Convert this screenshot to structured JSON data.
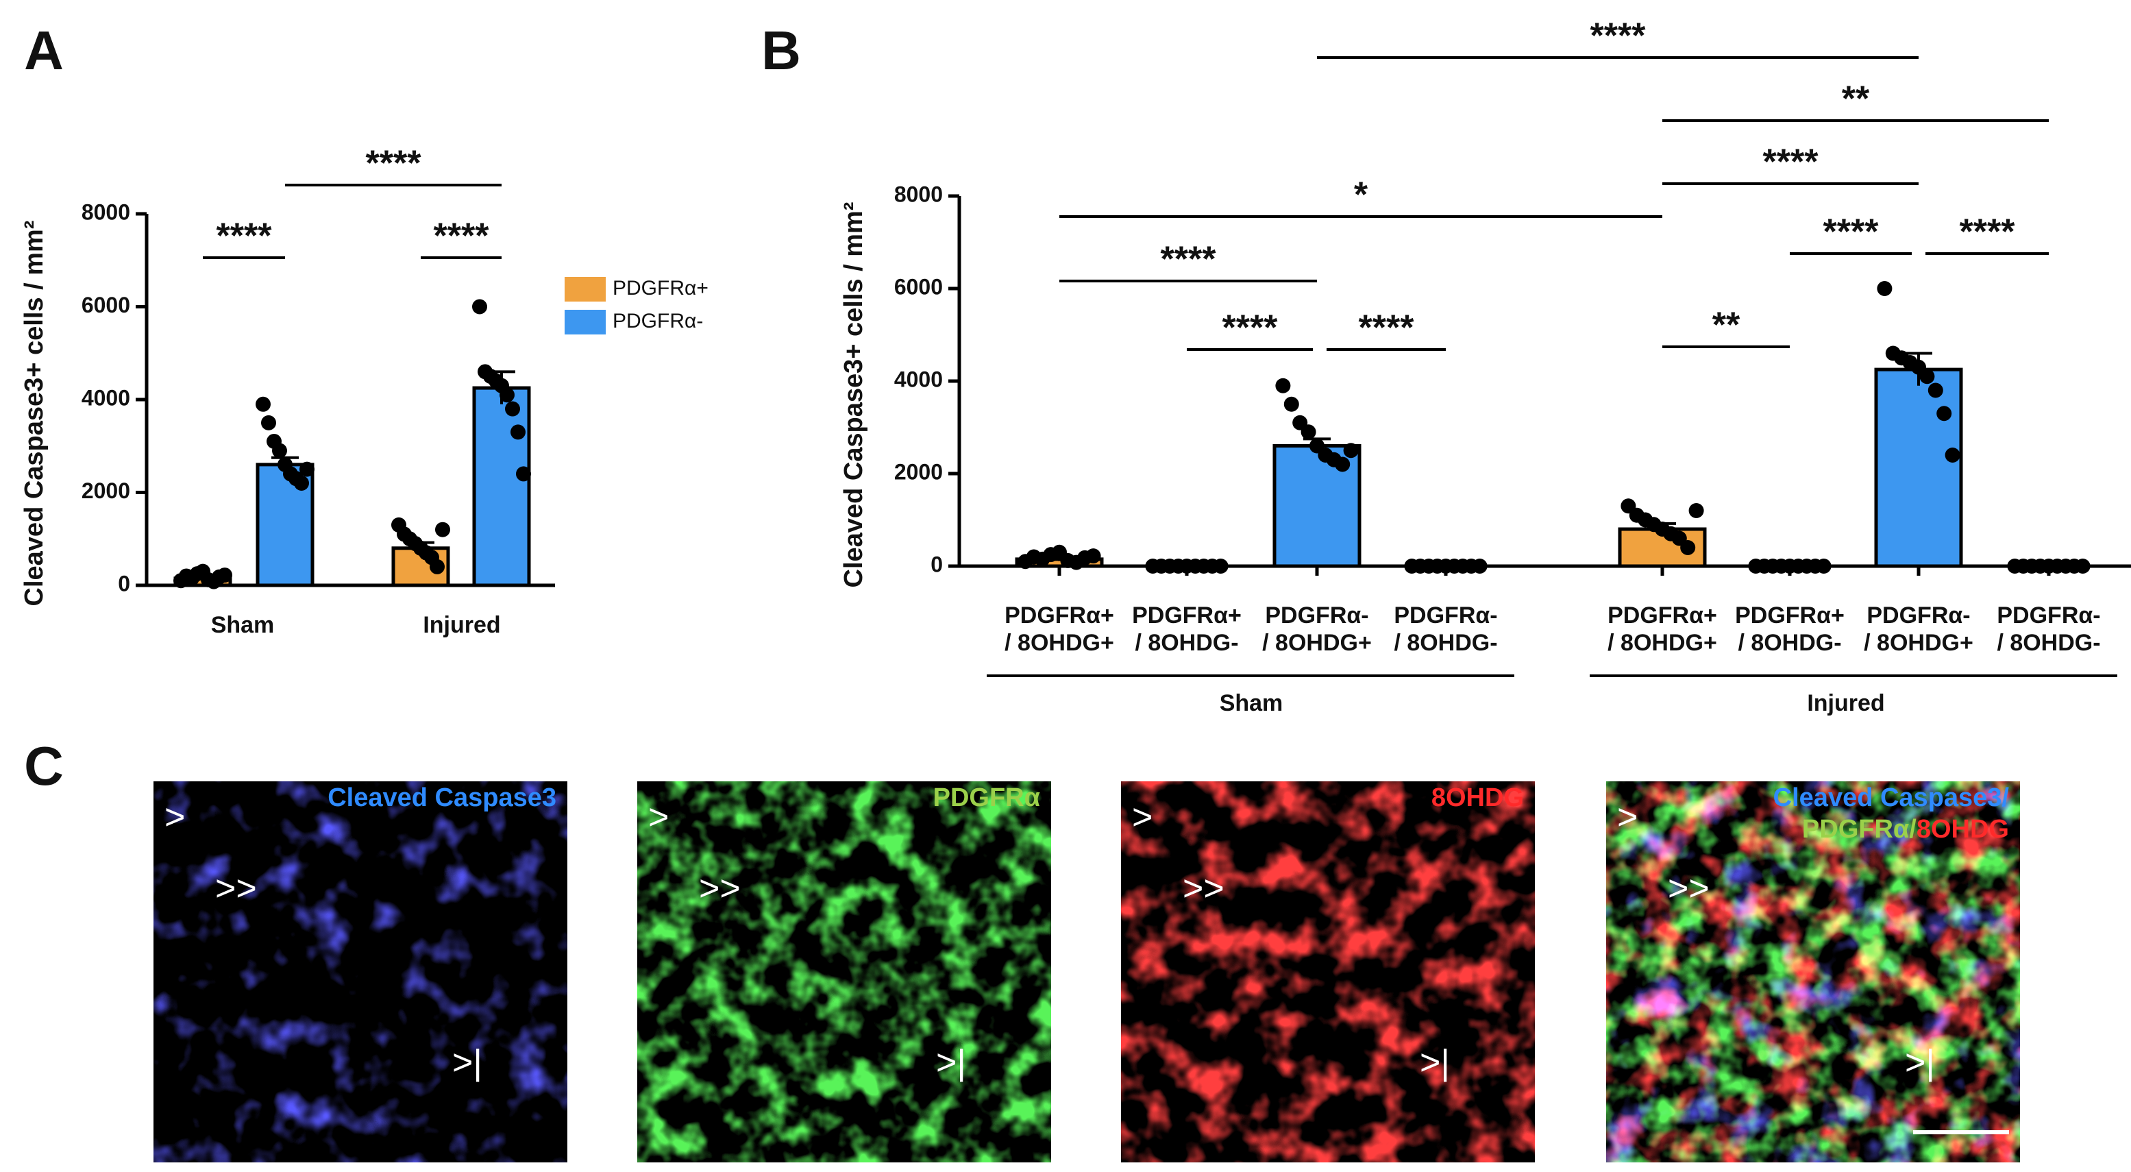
{
  "chart_data": [
    {
      "type": "bar",
      "panel_label": "A",
      "ylabel": "Cleaved Caspase3+ cells / mm²",
      "categories": [
        "Sham",
        "Injured"
      ],
      "series": [
        {
          "name": "PDGFRα+",
          "color": "#f0a23f",
          "values": [
            150,
            800
          ],
          "errors": [
            40,
            120
          ],
          "points": [
            [
              100,
              200,
              150,
              250,
              300,
              120,
              80,
              180,
              220
            ],
            [
              1300,
              1100,
              1000,
              900,
              800,
              700,
              600,
              400,
              1200
            ]
          ]
        },
        {
          "name": "PDGFRα-",
          "color": "#3d97f0",
          "values": [
            2600,
            4250
          ],
          "errors": [
            150,
            350
          ],
          "points": [
            [
              3900,
              3500,
              3100,
              2900,
              2600,
              2400,
              2300,
              2200,
              2500
            ],
            [
              6000,
              4600,
              4500,
              4400,
              4300,
              4100,
              3800,
              3300,
              2400
            ]
          ]
        }
      ],
      "ylim": [
        0,
        8000
      ],
      "yticks": [
        0,
        2000,
        4000,
        6000,
        8000
      ],
      "legend": "right",
      "annotations": [
        "****",
        "****",
        "****"
      ]
    },
    {
      "type": "bar",
      "panel_label": "B",
      "ylabel": "Cleaved Caspase3+ cells / mm²",
      "categories": [
        [
          "PDGFRα+",
          "/ 8OHDG+"
        ],
        [
          "PDGFRα+",
          "/ 8OHDG-"
        ],
        [
          "PDGFRα-",
          "/ 8OHDG+"
        ],
        [
          "PDGFRα-",
          "/ 8OHDG-"
        ],
        [
          "PDGFRα+",
          "/ 8OHDG+"
        ],
        [
          "PDGFRα+",
          "/ 8OHDG-"
        ],
        [
          "PDGFRα-",
          "/ 8OHDG+"
        ],
        [
          "PDGFRα-",
          "/ 8OHDG-"
        ]
      ],
      "groups": [
        "Sham",
        "Injured"
      ],
      "values": [
        150,
        0,
        2600,
        0,
        800,
        0,
        4250,
        0
      ],
      "errors": [
        40,
        0,
        150,
        0,
        120,
        0,
        350,
        0
      ],
      "colors": [
        "#f0a23f",
        "#f0a23f",
        "#3d97f0",
        "#3d97f0",
        "#f0a23f",
        "#f0a23f",
        "#3d97f0",
        "#3d97f0"
      ],
      "points": [
        [
          100,
          200,
          150,
          250,
          300,
          120,
          80,
          180,
          220
        ],
        [
          0,
          0,
          0,
          0,
          0,
          0,
          0,
          0,
          0
        ],
        [
          3900,
          3500,
          3100,
          2900,
          2600,
          2400,
          2300,
          2200,
          2500
        ],
        [
          0,
          0,
          0,
          0,
          0,
          0,
          0,
          0,
          0
        ],
        [
          1300,
          1100,
          1000,
          900,
          800,
          700,
          600,
          400,
          1200
        ],
        [
          0,
          0,
          0,
          0,
          0,
          0,
          0,
          0,
          0
        ],
        [
          6000,
          4600,
          4500,
          4400,
          4300,
          4100,
          3800,
          3300,
          2400
        ],
        [
          0,
          0,
          0,
          0,
          0,
          0,
          0,
          0,
          0
        ]
      ],
      "ylim": [
        0,
        8000
      ],
      "yticks": [
        0,
        2000,
        4000,
        6000,
        8000
      ],
      "annotations": [
        "****",
        "**",
        "****",
        "*",
        "****",
        "****",
        "****",
        "****",
        "****",
        "**"
      ]
    }
  ],
  "panel_c": {
    "panel_label": "C",
    "images": [
      {
        "label_parts": [
          {
            "text": "Cleaved Caspase3",
            "color": "#2f8bff"
          }
        ]
      },
      {
        "label_parts": [
          {
            "text": "PDGFRα",
            "color": "#9bd14a"
          }
        ]
      },
      {
        "label_parts": [
          {
            "text": "8OHDG",
            "color": "#ff2a2a"
          }
        ]
      },
      {
        "label_parts": [
          {
            "text": "Cleaved Caspase3/",
            "color": "#2f8bff"
          },
          {
            "text": "PDGFRα",
            "color": "#9bd14a"
          },
          {
            "text": "/",
            "color": "#9bd14a"
          },
          {
            "text": "8OHDG",
            "color": "#ff2a2a"
          }
        ]
      }
    ],
    "markers": [
      ">",
      ">>",
      ">|"
    ]
  }
}
